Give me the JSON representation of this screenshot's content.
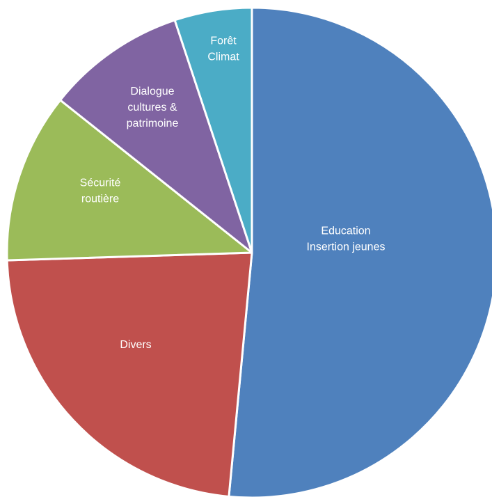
{
  "chart_data": {
    "type": "pie",
    "start_angle_deg": 0,
    "direction": "clockwise",
    "slices": [
      {
        "label_lines": [
          "Education",
          "Insertion jeunes"
        ],
        "value": 51.5,
        "color": "#4F81BD"
      },
      {
        "label_lines": [
          "Divers"
        ],
        "value": 23.0,
        "color": "#C0504D"
      },
      {
        "label_lines": [
          "Sécurité",
          "routière"
        ],
        "value": 11.2,
        "color": "#9BBB59"
      },
      {
        "label_lines": [
          "Dialogue",
          "cultures &",
          "patrimoine"
        ],
        "value": 9.2,
        "color": "#8064A2"
      },
      {
        "label_lines": [
          "Forêt",
          "Climat"
        ],
        "value": 5.1,
        "color": "#4BACC6"
      }
    ]
  }
}
